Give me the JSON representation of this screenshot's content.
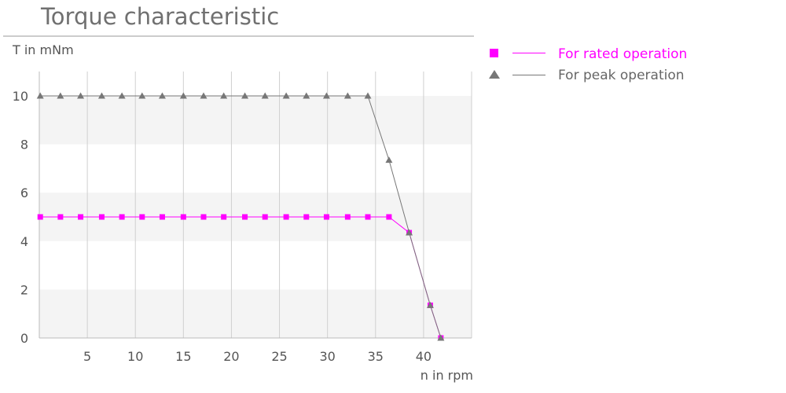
{
  "chart_data": {
    "type": "line",
    "title": "Torque characteristic",
    "xlabel": "n in rpm",
    "ylabel": "T in mNm",
    "xlim": [
      0,
      45
    ],
    "ylim": [
      0,
      10
    ],
    "xticks": [
      5,
      10,
      15,
      20,
      25,
      30,
      35,
      40
    ],
    "yticks": [
      0,
      2,
      4,
      6,
      8,
      10
    ],
    "grid": {
      "vertical": true,
      "horizontal_bands": true
    },
    "legend_position": "top-right",
    "series": [
      {
        "name": "For rated operation",
        "color": "#ff00ff",
        "marker": "square",
        "points": [
          [
            0.1,
            5
          ],
          [
            2.2,
            5
          ],
          [
            4.3,
            5
          ],
          [
            6.5,
            5
          ],
          [
            8.6,
            5
          ],
          [
            10.7,
            5
          ],
          [
            12.8,
            5
          ],
          [
            15.0,
            5
          ],
          [
            17.1,
            5
          ],
          [
            19.2,
            5
          ],
          [
            21.4,
            5
          ],
          [
            23.5,
            5
          ],
          [
            25.7,
            5
          ],
          [
            27.8,
            5
          ],
          [
            29.9,
            5
          ],
          [
            32.1,
            5
          ],
          [
            34.2,
            5
          ],
          [
            36.4,
            5
          ],
          [
            38.5,
            4.35
          ],
          [
            40.7,
            1.35
          ],
          [
            41.8,
            0
          ]
        ]
      },
      {
        "name": "For peak operation",
        "color": "#777777",
        "marker": "triangle",
        "points": [
          [
            0.1,
            10
          ],
          [
            2.2,
            10
          ],
          [
            4.3,
            10
          ],
          [
            6.5,
            10
          ],
          [
            8.6,
            10
          ],
          [
            10.7,
            10
          ],
          [
            12.8,
            10
          ],
          [
            15.0,
            10
          ],
          [
            17.1,
            10
          ],
          [
            19.2,
            10
          ],
          [
            21.4,
            10
          ],
          [
            23.5,
            10
          ],
          [
            25.7,
            10
          ],
          [
            27.8,
            10
          ],
          [
            29.9,
            10
          ],
          [
            32.1,
            10
          ],
          [
            34.2,
            10
          ],
          [
            36.4,
            7.35
          ],
          [
            38.5,
            4.35
          ],
          [
            40.7,
            1.35
          ],
          [
            41.8,
            0
          ]
        ]
      }
    ]
  }
}
